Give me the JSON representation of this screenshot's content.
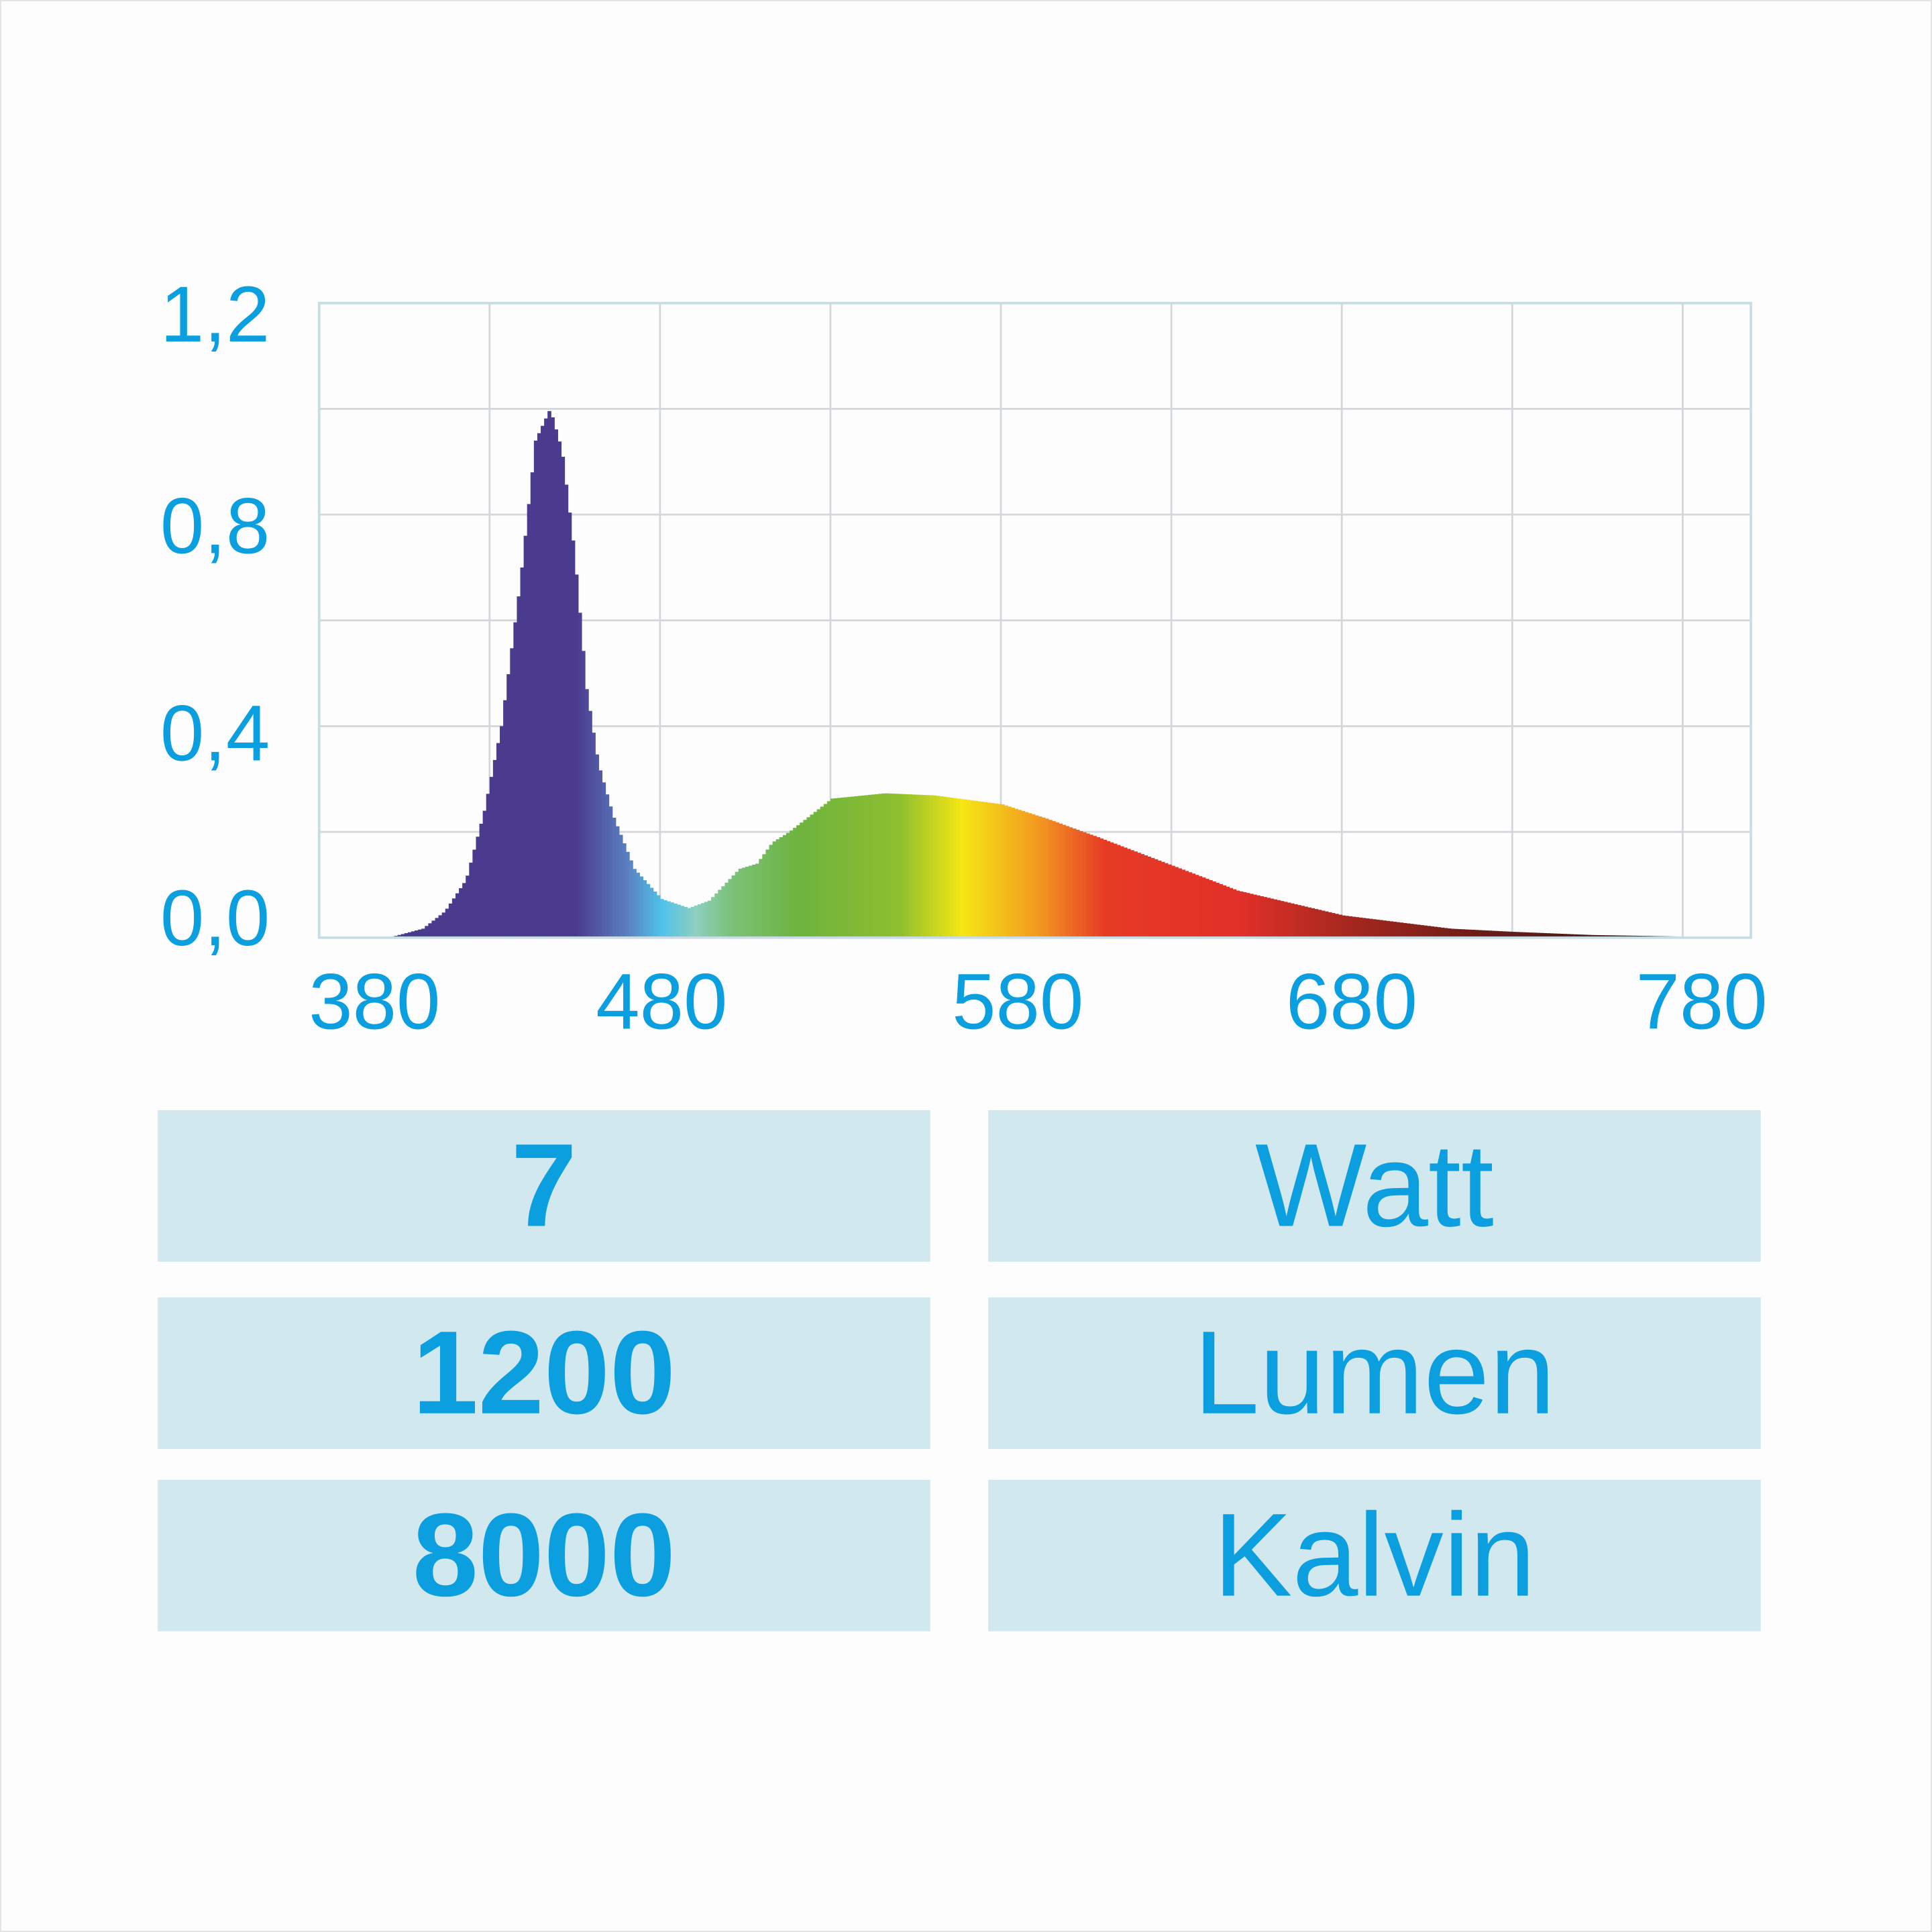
{
  "chart_data": {
    "type": "bar",
    "title": "",
    "xlabel": "",
    "ylabel": "",
    "xlim": [
      380,
      800
    ],
    "ylim": [
      0,
      1.2
    ],
    "grid": true,
    "x_grid_step": 50,
    "y_grid_step": 0.2,
    "x_tick_labels": [
      "380",
      "480",
      "580",
      "680",
      "780"
    ],
    "y_tick_labels": [
      "1,2",
      "0,8",
      "0,4",
      "0,0"
    ],
    "series": [
      {
        "x": [
          380,
          400,
          410,
          416.5,
          422.7,
          428,
          433,
          438.5,
          443,
          447.3,
          450.8,
          454.4,
          458,
          461.4,
          465.8,
          472,
          480,
          488,
          494,
          502.8,
          508,
          512.5,
          517.5,
          530,
          545.6,
          560,
          580,
          593,
          608,
          630,
          649,
          680,
          711.5,
          730,
          753,
          780,
          795
        ],
        "y": [
          0,
          0,
          0.017,
          0.05,
          0.11,
          0.24,
          0.4,
          0.67,
          0.94,
          1.0,
          0.92,
          0.73,
          0.47,
          0.33,
          0.23,
          0.13,
          0.073,
          0.056,
          0.07,
          0.13,
          0.14,
          0.18,
          0.2,
          0.263,
          0.273,
          0.269,
          0.252,
          0.225,
          0.19,
          0.136,
          0.089,
          0.042,
          0.017,
          0.011,
          0.005,
          0.002,
          0.002
        ]
      }
    ],
    "colors": {
      "axis_text": "#0b9fdf",
      "grid": "#d3d6da",
      "spectrum": [
        "#4b3b8f",
        "#4b3b8f",
        "#5a80c0",
        "#4fc3ea",
        "#8ecfc0",
        "#7bc27a",
        "#6db33f",
        "#8fbf2e",
        "#f5e614",
        "#f39b20",
        "#e63b25",
        "#e03028",
        "#a8281f",
        "#6b1d18",
        "#2a1a1a"
      ],
      "spectrum_nm": [
        380,
        455,
        470,
        480,
        490,
        500,
        520,
        550,
        568,
        590,
        610,
        650,
        680,
        720,
        790
      ]
    }
  },
  "specs": [
    {
      "value": "7",
      "unit": "Watt"
    },
    {
      "value": "1200",
      "unit": "Lumen"
    },
    {
      "value": "8000",
      "unit": "Kalvin"
    }
  ]
}
